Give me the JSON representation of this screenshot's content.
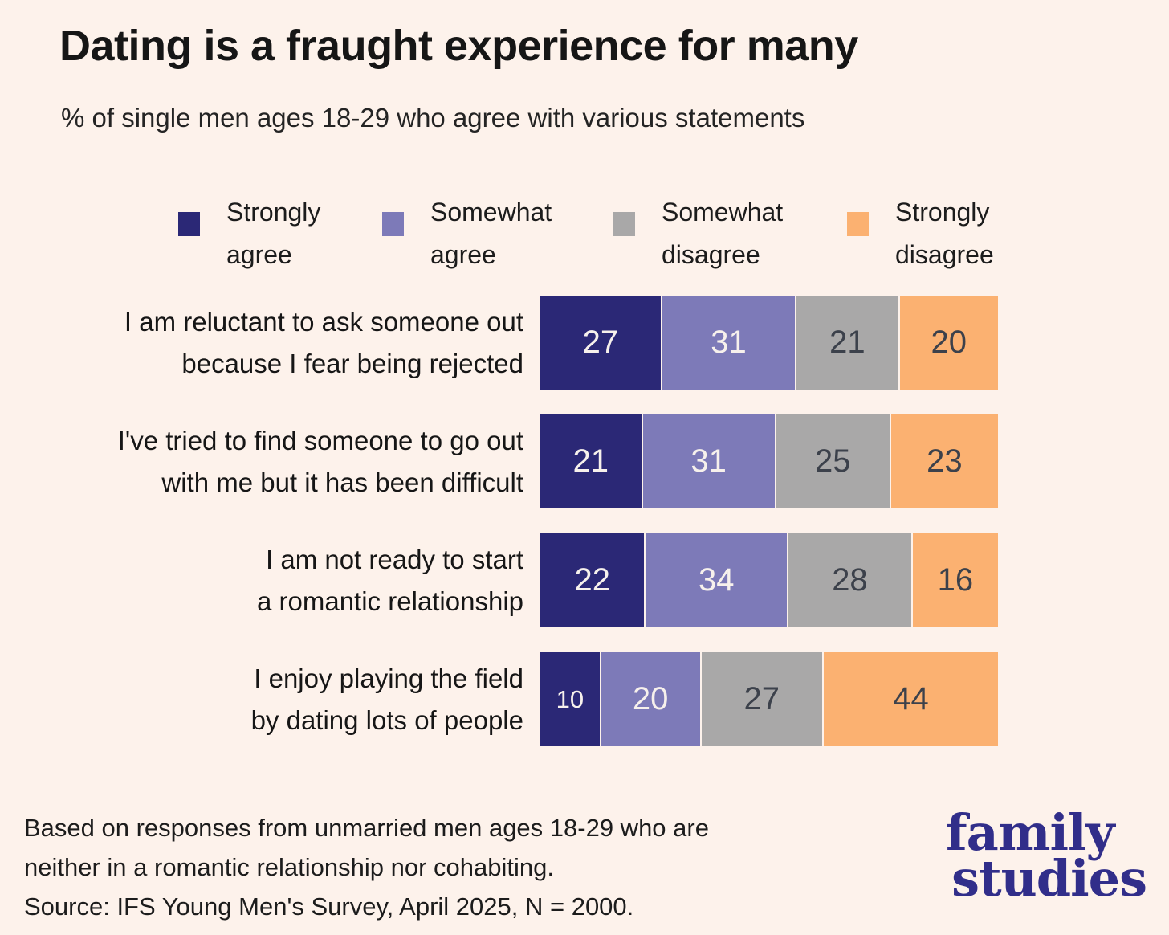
{
  "background_color": "#fdf2eb",
  "header": {
    "title": "Dating is a fraught experience for many",
    "subtitle": "% of single men ages 18-29 who agree with various statements"
  },
  "chart_data": {
    "type": "bar",
    "stacked": true,
    "orientation": "horizontal",
    "normalized_to_100": true,
    "unit": "%",
    "title": "Dating is a fraught experience for many",
    "subtitle": "% of single men ages 18-29 who agree with various statements",
    "legend_position": "top",
    "categories": [
      "I am reluctant to ask someone out because I fear being rejected",
      "I've tried to find someone to go out with me but it has been difficult",
      "I am not ready to start a romantic relationship",
      "I enjoy playing the field by dating lots of people"
    ],
    "category_lines": [
      [
        "I am reluctant to ask someone out",
        "because I fear being rejected"
      ],
      [
        "I've tried to find someone to go out",
        "with me but it has been difficult"
      ],
      [
        "I am not ready to start",
        "a romantic relationship"
      ],
      [
        "I enjoy playing the field",
        "by dating lots of people"
      ]
    ],
    "series": [
      {
        "name": "Strongly agree",
        "color": "#2b2876",
        "label_color": "#f7f1ec",
        "values": [
          27,
          21,
          22,
          10
        ]
      },
      {
        "name": "Somewhat agree",
        "color": "#7d7ab8",
        "label_color": "#f7f1ec",
        "values": [
          31,
          31,
          34,
          20
        ]
      },
      {
        "name": "Somewhat disagree",
        "color": "#a9a8a8",
        "label_color": "#3c414b",
        "values": [
          21,
          25,
          28,
          27
        ]
      },
      {
        "name": "Strongly disagree",
        "color": "#fbb171",
        "label_color": "#3c414b",
        "values": [
          20,
          23,
          16,
          44
        ]
      }
    ]
  },
  "footer": {
    "lines": [
      "Based on responses from unmarried men ages 18-29 who are",
      "neither in a romantic relationship nor cohabiting.",
      "Source: IFS Young Men's Survey, April 2025, N = 2000."
    ]
  },
  "logo": {
    "line1": "family",
    "line2": "studies",
    "color": "#312e8a"
  }
}
